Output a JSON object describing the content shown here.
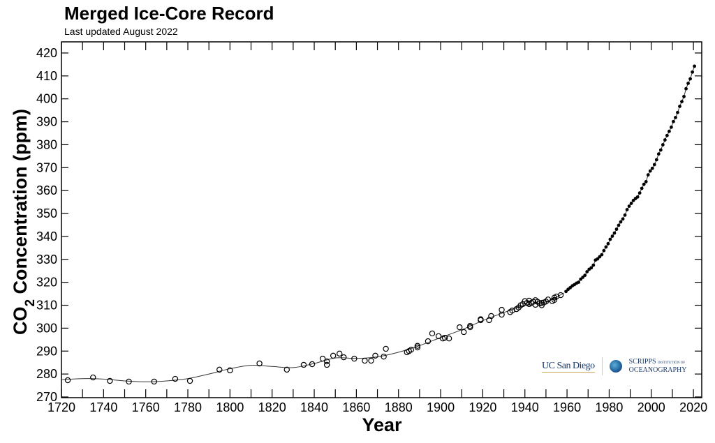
{
  "chart_data": {
    "type": "scatter",
    "title": "Merged Ice-Core Record",
    "subtitle": "Last updated August 2022",
    "xlabel": "Year",
    "ylabel_main": "CO",
    "ylabel_sub": "2",
    "ylabel_rest": " Concentration (ppm)",
    "xlim": [
      1720,
      2023
    ],
    "ylim": [
      270,
      425
    ],
    "xticks": [
      1720,
      1740,
      1760,
      1780,
      1800,
      1820,
      1840,
      1860,
      1880,
      1900,
      1920,
      1940,
      1960,
      1980,
      2000,
      2020
    ],
    "yticks": [
      270,
      280,
      290,
      300,
      310,
      320,
      330,
      340,
      350,
      360,
      370,
      380,
      390,
      400,
      410,
      420
    ],
    "grid": false,
    "series": [
      {
        "kind": "ice-core-open-circles",
        "points": [
          [
            1723,
            277.3
          ],
          [
            1735,
            278.5
          ],
          [
            1743,
            277.0
          ],
          [
            1752,
            276.7
          ],
          [
            1764,
            276.7
          ],
          [
            1774,
            277.9
          ],
          [
            1781,
            277.0
          ],
          [
            1795,
            281.9
          ],
          [
            1800,
            281.6
          ],
          [
            1814,
            284.6
          ],
          [
            1827,
            281.9
          ],
          [
            1835,
            284.0
          ],
          [
            1839,
            284.3
          ],
          [
            1844,
            286.7
          ],
          [
            1846,
            285.5
          ],
          [
            1846,
            284.0
          ],
          [
            1849,
            288.0
          ],
          [
            1852,
            288.9
          ],
          [
            1854,
            287.3
          ],
          [
            1859,
            286.7
          ],
          [
            1864,
            285.8
          ],
          [
            1867,
            285.8
          ],
          [
            1869,
            288.0
          ],
          [
            1873,
            287.6
          ],
          [
            1874,
            291.0
          ],
          [
            1884,
            289.5
          ],
          [
            1885,
            290.0
          ],
          [
            1886,
            290.6
          ],
          [
            1889,
            291.6
          ],
          [
            1889,
            292.3
          ],
          [
            1894,
            294.3
          ],
          [
            1896,
            297.7
          ],
          [
            1899,
            296.5
          ],
          [
            1901,
            295.5
          ],
          [
            1902,
            295.8
          ],
          [
            1904,
            295.5
          ],
          [
            1909,
            300.4
          ],
          [
            1911,
            298.3
          ],
          [
            1914,
            300.4
          ],
          [
            1914,
            301.0
          ],
          [
            1919,
            303.5
          ],
          [
            1919,
            303.9
          ],
          [
            1923,
            303.5
          ],
          [
            1924,
            305.3
          ],
          [
            1929,
            305.9
          ],
          [
            1929,
            308.0
          ],
          [
            1933,
            307.0
          ],
          [
            1934,
            307.7
          ],
          [
            1936,
            308.3
          ],
          [
            1937,
            309.0
          ],
          [
            1938,
            310.0
          ],
          [
            1939,
            310.5
          ],
          [
            1940,
            311.8
          ],
          [
            1941,
            311.0
          ],
          [
            1942,
            310.5
          ],
          [
            1942,
            312.0
          ],
          [
            1943,
            311.0
          ],
          [
            1944,
            311.5
          ],
          [
            1945,
            312.2
          ],
          [
            1945,
            310.2
          ],
          [
            1946,
            311.5
          ],
          [
            1947,
            310.8
          ],
          [
            1948,
            311.0
          ],
          [
            1948,
            310.0
          ],
          [
            1949,
            311.2
          ],
          [
            1950,
            311.6
          ],
          [
            1951,
            312.5
          ],
          [
            1953,
            311.8
          ],
          [
            1954,
            312.3
          ],
          [
            1954,
            313.3
          ],
          [
            1955,
            313.8
          ],
          [
            1957,
            314.4
          ]
        ]
      },
      {
        "kind": "spline-fit",
        "points": [
          [
            1720,
            277.5
          ],
          [
            1730,
            278.0
          ],
          [
            1740,
            277.8
          ],
          [
            1750,
            277.0
          ],
          [
            1760,
            276.6
          ],
          [
            1770,
            277.0
          ],
          [
            1780,
            278.0
          ],
          [
            1790,
            280.0
          ],
          [
            1800,
            282.3
          ],
          [
            1810,
            283.8
          ],
          [
            1820,
            283.3
          ],
          [
            1830,
            282.8
          ],
          [
            1840,
            284.6
          ],
          [
            1850,
            287.0
          ],
          [
            1860,
            286.8
          ],
          [
            1870,
            287.5
          ],
          [
            1880,
            289.5
          ],
          [
            1890,
            292.4
          ],
          [
            1900,
            295.9
          ],
          [
            1910,
            299.3
          ],
          [
            1920,
            303.3
          ],
          [
            1930,
            306.8
          ],
          [
            1940,
            310.0
          ],
          [
            1950,
            311.5
          ],
          [
            1958.5,
            315.3
          ]
        ]
      },
      {
        "kind": "mauna-loa-filled-dots",
        "points": [
          [
            1959,
            315.98
          ],
          [
            1960,
            316.91
          ],
          [
            1961,
            317.64
          ],
          [
            1962,
            318.45
          ],
          [
            1963,
            318.99
          ],
          [
            1964,
            319.62
          ],
          [
            1965,
            320.04
          ],
          [
            1966,
            321.37
          ],
          [
            1967,
            322.18
          ],
          [
            1968,
            323.05
          ],
          [
            1969,
            324.62
          ],
          [
            1970,
            325.68
          ],
          [
            1971,
            326.32
          ],
          [
            1972,
            327.46
          ],
          [
            1973,
            329.68
          ],
          [
            1974,
            330.19
          ],
          [
            1975,
            331.13
          ],
          [
            1976,
            332.03
          ],
          [
            1977,
            333.84
          ],
          [
            1978,
            335.41
          ],
          [
            1979,
            336.84
          ],
          [
            1980,
            338.76
          ],
          [
            1981,
            340.12
          ],
          [
            1982,
            341.48
          ],
          [
            1983,
            343.15
          ],
          [
            1984,
            344.87
          ],
          [
            1985,
            346.35
          ],
          [
            1986,
            347.61
          ],
          [
            1987,
            349.31
          ],
          [
            1988,
            351.69
          ],
          [
            1989,
            353.2
          ],
          [
            1990,
            354.45
          ],
          [
            1991,
            355.7
          ],
          [
            1992,
            356.54
          ],
          [
            1993,
            357.21
          ],
          [
            1994,
            358.96
          ],
          [
            1995,
            360.97
          ],
          [
            1996,
            362.74
          ],
          [
            1997,
            363.88
          ],
          [
            1998,
            366.84
          ],
          [
            1999,
            368.54
          ],
          [
            2000,
            369.71
          ],
          [
            2001,
            371.32
          ],
          [
            2002,
            373.45
          ],
          [
            2003,
            375.98
          ],
          [
            2004,
            377.7
          ],
          [
            2005,
            379.98
          ],
          [
            2006,
            382.09
          ],
          [
            2007,
            384.02
          ],
          [
            2008,
            385.83
          ],
          [
            2009,
            387.64
          ],
          [
            2010,
            390.1
          ],
          [
            2011,
            391.85
          ],
          [
            2012,
            394.06
          ],
          [
            2013,
            396.74
          ],
          [
            2014,
            398.81
          ],
          [
            2015,
            401.01
          ],
          [
            2016,
            404.41
          ],
          [
            2017,
            406.76
          ],
          [
            2018,
            408.72
          ],
          [
            2019,
            411.66
          ],
          [
            2020,
            414.24
          ]
        ]
      }
    ]
  },
  "logos": {
    "ucsd": "UC San Diego",
    "scripps_top": "SCRIPPS",
    "scripps_small": "INSTITUTION OF",
    "scripps_bottom": "OCEANOGRAPHY"
  }
}
